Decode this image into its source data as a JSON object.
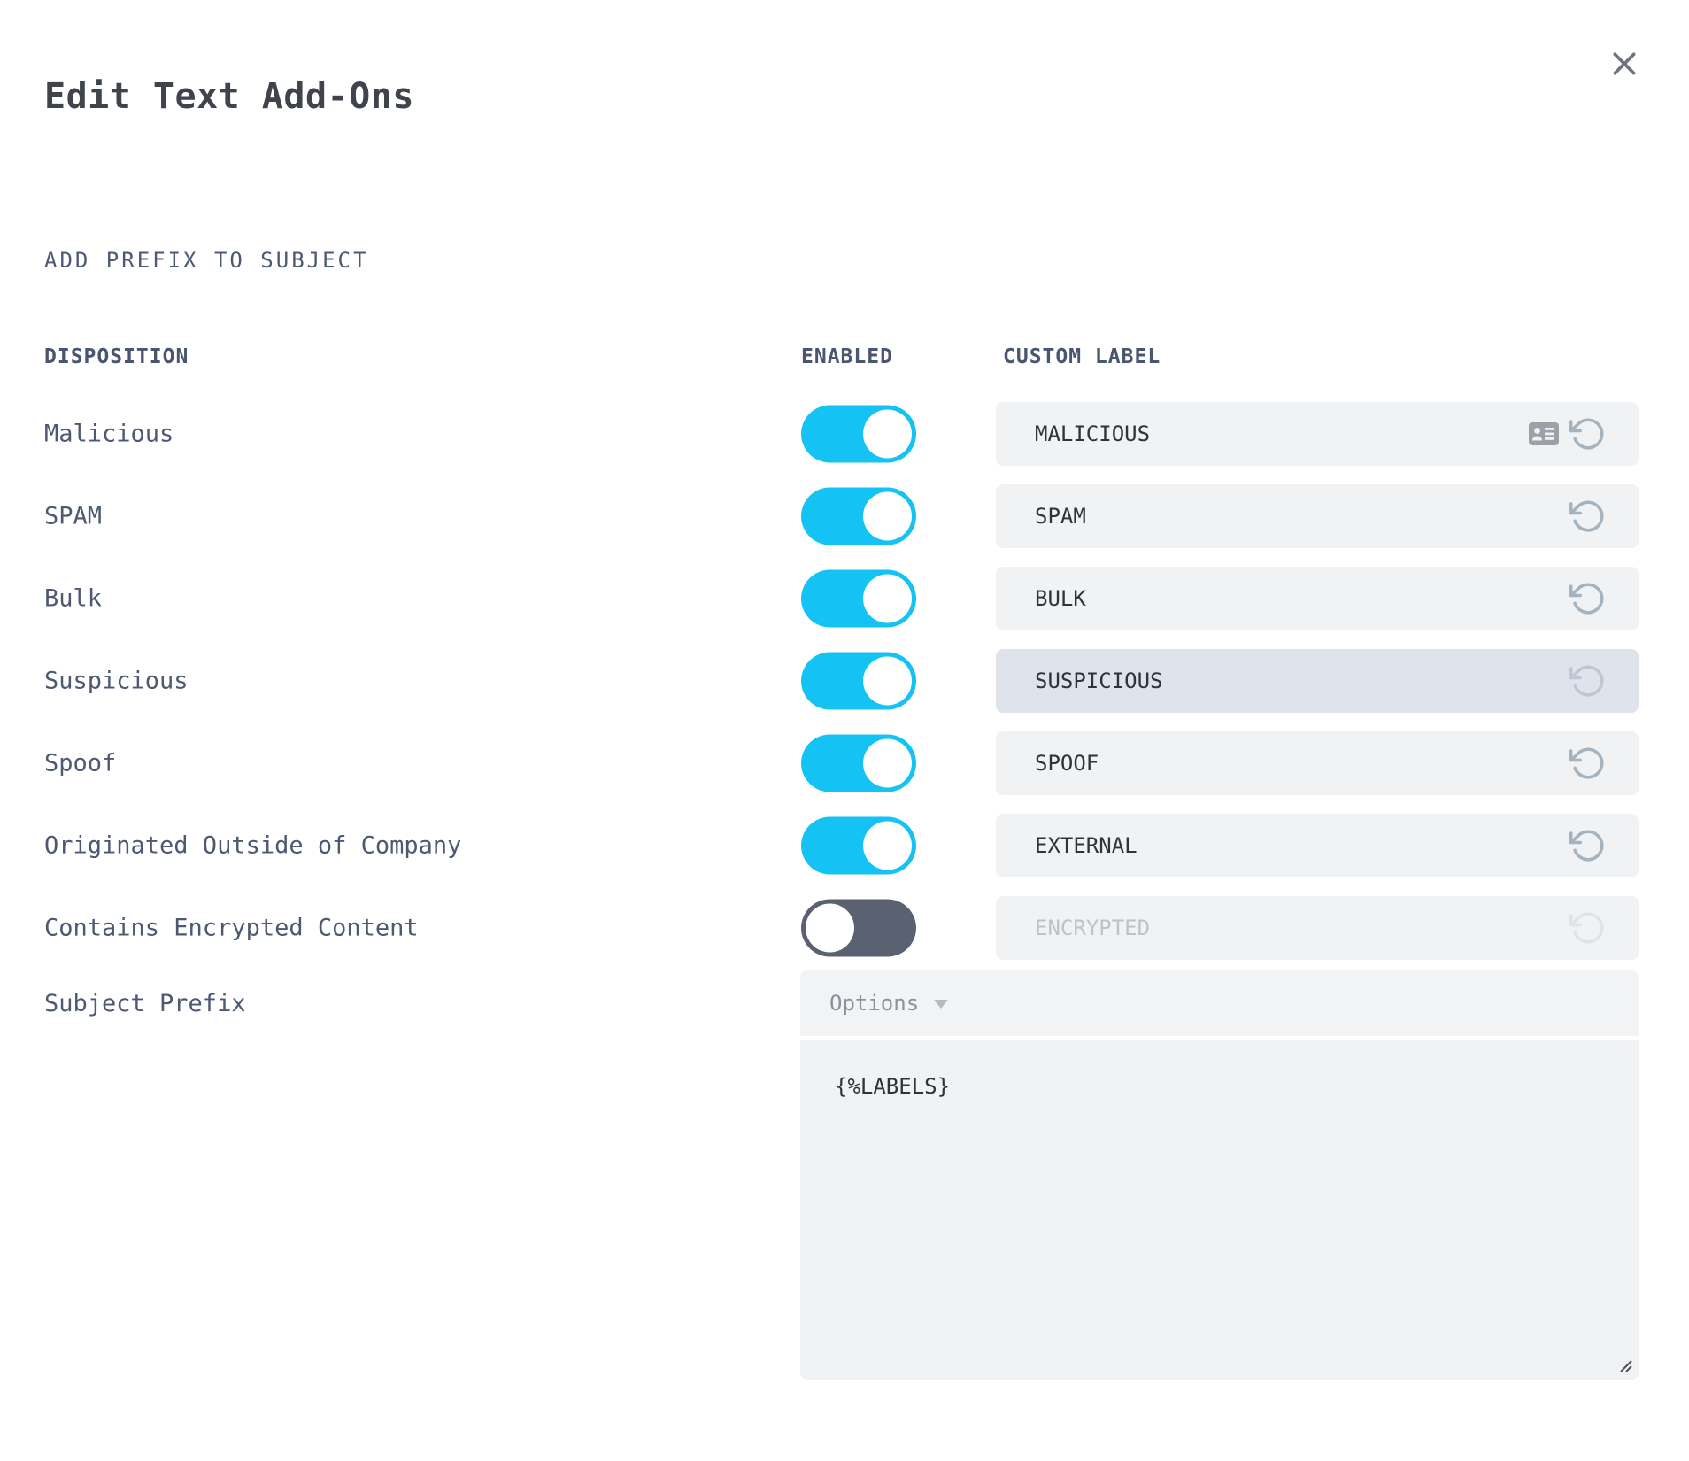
{
  "dialog": {
    "title": "Edit Text Add-Ons"
  },
  "section_heading": "ADD PREFIX TO SUBJECT",
  "table": {
    "headers": {
      "disposition": "DISPOSITION",
      "enabled": "ENABLED",
      "custom_label": "CUSTOM LABEL"
    },
    "rows": [
      {
        "disposition": "Malicious",
        "enabled": true,
        "custom_label": "MALICIOUS",
        "state": "default",
        "extra_icon": "contact-card"
      },
      {
        "disposition": "SPAM",
        "enabled": true,
        "custom_label": "SPAM",
        "state": "default"
      },
      {
        "disposition": "Bulk",
        "enabled": true,
        "custom_label": "BULK",
        "state": "default"
      },
      {
        "disposition": "Suspicious",
        "enabled": true,
        "custom_label": "SUSPICIOUS",
        "state": "highlighted"
      },
      {
        "disposition": "Spoof",
        "enabled": true,
        "custom_label": "SPOOF",
        "state": "default"
      },
      {
        "disposition": "Originated Outside of Company",
        "enabled": true,
        "custom_label": "EXTERNAL",
        "state": "default"
      },
      {
        "disposition": "Contains Encrypted Content",
        "enabled": false,
        "custom_label": "ENCRYPTED",
        "state": "disabled"
      }
    ]
  },
  "subject_prefix": {
    "label": "Subject Prefix",
    "options_label": "Options",
    "value": "{%LABELS}"
  },
  "colors": {
    "toggle_on": "#14C3F3",
    "toggle_off": "#5A6170",
    "input_bg": "#F0F2F3",
    "input_bg_highlighted": "#DFE3EC",
    "label_text": "#4D5973",
    "input_text": "#2F333A",
    "disabled_text": "#BDC3CA"
  }
}
